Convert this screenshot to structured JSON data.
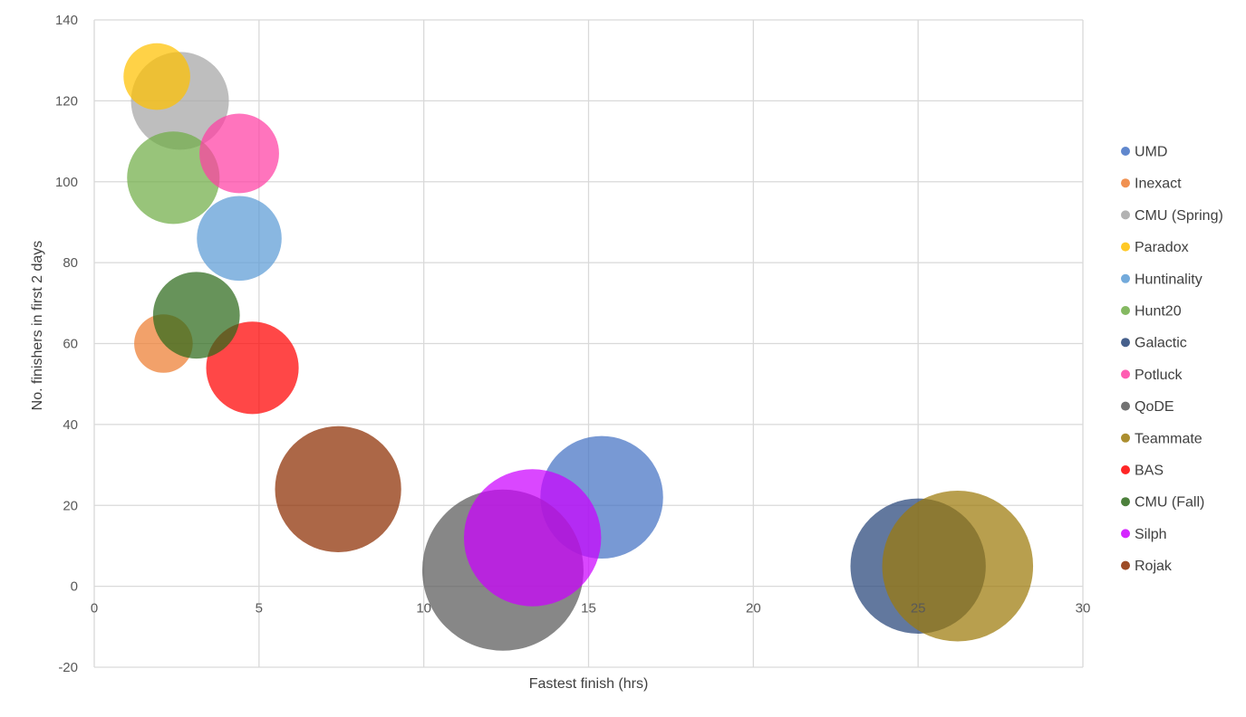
{
  "chart_data": {
    "type": "bubble",
    "title": "",
    "xlabel": "Fastest finish (hrs)",
    "ylabel": "No. finishers in first 2 days",
    "xlim": [
      0,
      30
    ],
    "ylim": [
      -20,
      140
    ],
    "xticks": [
      0,
      5,
      10,
      15,
      20,
      25,
      30
    ],
    "yticks": [
      -20,
      0,
      20,
      40,
      60,
      80,
      100,
      120,
      140
    ],
    "grid": true,
    "legend_position": "right",
    "bubble_opacity": 0.72,
    "series": [
      {
        "name": "UMD",
        "x": 15.4,
        "y": 22,
        "size": 88,
        "color": "#4472C4"
      },
      {
        "name": "Inexact",
        "x": 2.1,
        "y": 60,
        "size": 20,
        "color": "#ED7D31"
      },
      {
        "name": "CMU (Spring)",
        "x": 2.6,
        "y": 120,
        "size": 56,
        "color": "#A5A5A5"
      },
      {
        "name": "Paradox",
        "x": 1.9,
        "y": 126,
        "size": 26,
        "color": "#FFC000"
      },
      {
        "name": "Huntinality",
        "x": 4.4,
        "y": 86,
        "size": 42,
        "color": "#5B9BD5"
      },
      {
        "name": "Hunt20",
        "x": 2.4,
        "y": 101,
        "size": 50,
        "color": "#70AD47"
      },
      {
        "name": "Galactic",
        "x": 25.0,
        "y": 5,
        "size": 107,
        "color": "#264478"
      },
      {
        "name": "Potluck",
        "x": 4.4,
        "y": 107,
        "size": 37,
        "color": "#FF3FA4"
      },
      {
        "name": "QoDE",
        "x": 12.4,
        "y": 4,
        "size": 152,
        "color": "#595959"
      },
      {
        "name": "Teammate",
        "x": 26.2,
        "y": 5,
        "size": 133,
        "color": "#9C7A0A"
      },
      {
        "name": "BAS",
        "x": 4.8,
        "y": 54,
        "size": 50,
        "color": "#FF0000"
      },
      {
        "name": "CMU (Fall)",
        "x": 3.1,
        "y": 67,
        "size": 44,
        "color": "#2D6A1A"
      },
      {
        "name": "Silph",
        "x": 13.3,
        "y": 12,
        "size": 110,
        "color": "#CC00FF"
      },
      {
        "name": "Rojak",
        "x": 7.4,
        "y": 24,
        "size": 93,
        "color": "#8C2D00"
      }
    ]
  }
}
